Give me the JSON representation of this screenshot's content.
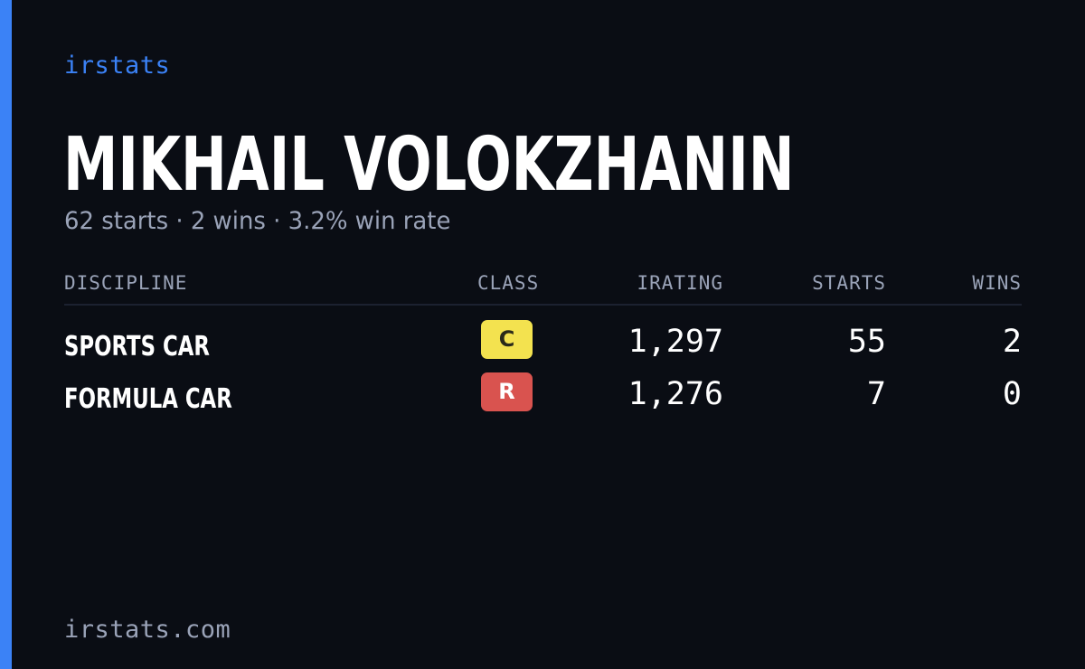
{
  "brand": "irstats",
  "driver": {
    "name": "MIKHAIL VOLOKZHANIN",
    "summary": "62 starts · 2 wins · 3.2% win rate"
  },
  "table": {
    "headers": {
      "discipline": "DISCIPLINE",
      "class": "CLASS",
      "irating": "IRATING",
      "starts": "STARTS",
      "wins": "WINS"
    },
    "rows": [
      {
        "discipline": "SPORTS CAR",
        "class": "C",
        "class_color": "#f3e24f",
        "irating": "1,297",
        "starts": "55",
        "wins": "2"
      },
      {
        "discipline": "FORMULA CAR",
        "class": "R",
        "class_color": "#d9534f",
        "irating": "1,276",
        "starts": "7",
        "wins": "0"
      }
    ]
  },
  "footer": {
    "site": "irstats.com"
  },
  "colors": {
    "accent": "#3b82f6",
    "background": "#0a0d14",
    "muted_text": "#9aa3b8"
  }
}
